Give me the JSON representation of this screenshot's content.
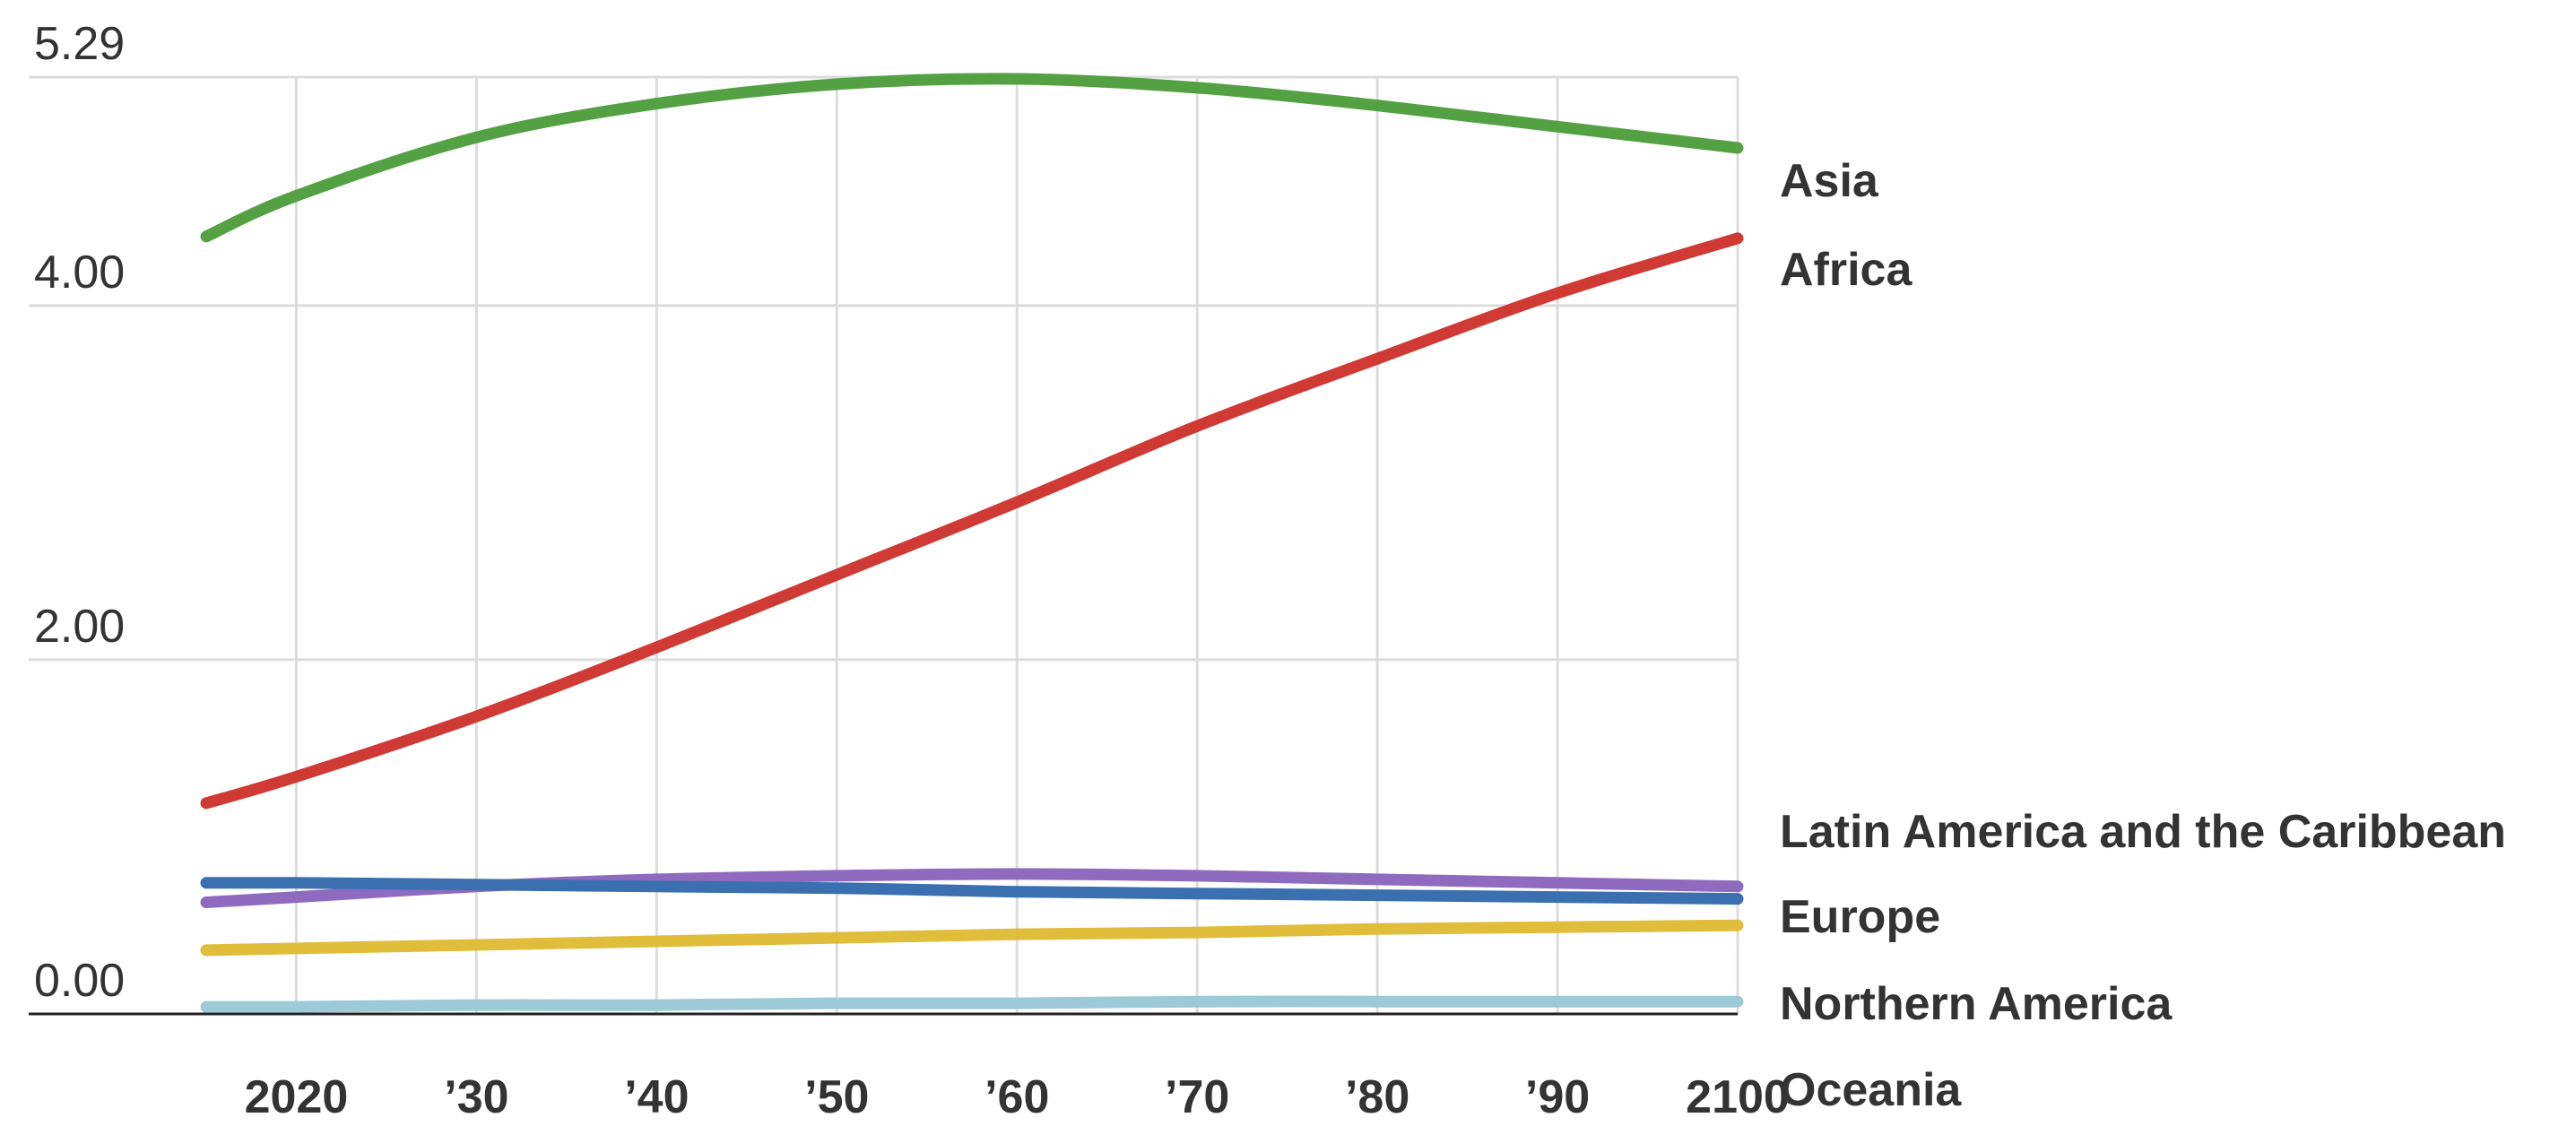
{
  "chart_data": {
    "type": "line",
    "title": "",
    "xlabel": "",
    "ylabel": "",
    "xlim": [
      2015,
      2100
    ],
    "ylim": [
      0,
      5.29
    ],
    "grid": true,
    "legend": "right-end labels",
    "x": [
      2015,
      2020,
      2030,
      2040,
      2050,
      2060,
      2070,
      2080,
      2090,
      2100
    ],
    "x_ticks": [
      {
        "value": 2020,
        "label": "2020"
      },
      {
        "value": 2030,
        "label": "’30"
      },
      {
        "value": 2040,
        "label": "’40"
      },
      {
        "value": 2050,
        "label": "’50"
      },
      {
        "value": 2060,
        "label": "’60"
      },
      {
        "value": 2070,
        "label": "’70"
      },
      {
        "value": 2080,
        "label": "’80"
      },
      {
        "value": 2090,
        "label": "’90"
      },
      {
        "value": 2100,
        "label": "2100"
      }
    ],
    "y_ticks": [
      {
        "value": 0,
        "label": "0.00"
      },
      {
        "value": 2,
        "label": "2.00"
      },
      {
        "value": 4,
        "label": "4.00"
      },
      {
        "value": 5.29,
        "label": "5.29"
      }
    ],
    "series": [
      {
        "name": "Asia",
        "color": "#54a144",
        "values": [
          4.39,
          4.62,
          4.95,
          5.14,
          5.25,
          5.28,
          5.23,
          5.13,
          5.01,
          4.89
        ]
      },
      {
        "name": "Africa",
        "color": "#cf3a35",
        "values": [
          1.19,
          1.34,
          1.68,
          2.07,
          2.48,
          2.89,
          3.32,
          3.7,
          4.07,
          4.38
        ]
      },
      {
        "name": "Latin America and the Caribbean",
        "color": "#8f6bbf",
        "values": [
          0.63,
          0.66,
          0.72,
          0.76,
          0.78,
          0.79,
          0.78,
          0.76,
          0.74,
          0.72
        ]
      },
      {
        "name": "Europe",
        "color": "#3a6fb0",
        "values": [
          0.74,
          0.74,
          0.73,
          0.72,
          0.71,
          0.69,
          0.68,
          0.67,
          0.66,
          0.65
        ]
      },
      {
        "name": "Northern America",
        "color": "#e0bd3a",
        "values": [
          0.36,
          0.37,
          0.39,
          0.41,
          0.43,
          0.45,
          0.46,
          0.48,
          0.49,
          0.5
        ]
      },
      {
        "name": "Oceania",
        "color": "#9ccad6",
        "values": [
          0.04,
          0.04,
          0.05,
          0.05,
          0.06,
          0.06,
          0.07,
          0.07,
          0.07,
          0.07
        ]
      }
    ]
  }
}
